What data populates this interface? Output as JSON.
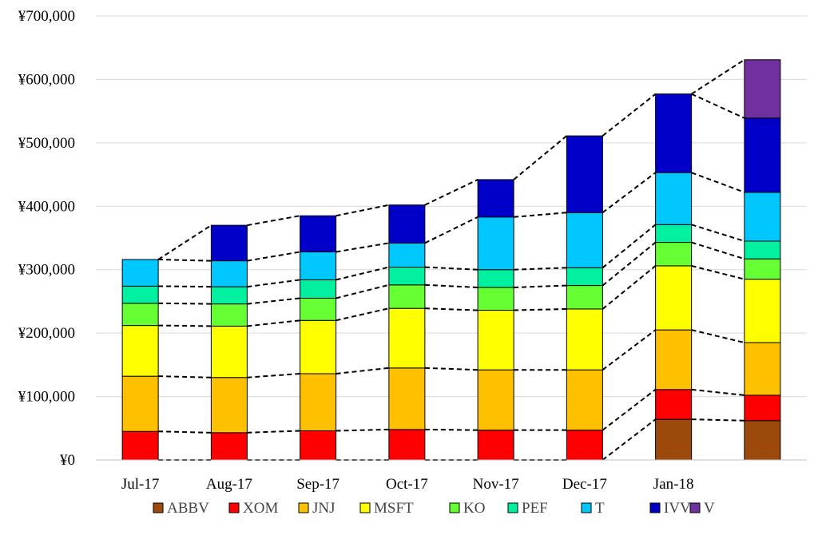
{
  "chart_data": {
    "type": "bar",
    "stacked": true,
    "categories": [
      "Jul-17",
      "Aug-17",
      "Sep-17",
      "Oct-17",
      "Nov-17",
      "Dec-17",
      "Jan-18",
      ""
    ],
    "y_tick_labels": [
      "¥0",
      "¥100,000",
      "¥200,000",
      "¥300,000",
      "¥400,000",
      "¥500,000",
      "¥600,000",
      "¥700,000"
    ],
    "ylim": [
      0,
      700000
    ],
    "grid": true,
    "legend_position": "bottom",
    "connector_lines": "dashed",
    "series": [
      {
        "name": "ABBV",
        "color": "#9C4A0C",
        "values": [
          0,
          0,
          0,
          0,
          0,
          0,
          64000,
          62000
        ]
      },
      {
        "name": "XOM",
        "color": "#FF0000",
        "values": [
          45000,
          43000,
          46000,
          48000,
          47000,
          47000,
          47000,
          40000
        ]
      },
      {
        "name": "JNJ",
        "color": "#FFC000",
        "values": [
          87000,
          87000,
          90000,
          97000,
          95000,
          95000,
          94000,
          83000
        ]
      },
      {
        "name": "MSFT",
        "color": "#FFFF00",
        "values": [
          80000,
          81000,
          84000,
          94000,
          94000,
          96000,
          101000,
          100000
        ]
      },
      {
        "name": "KO",
        "color": "#66FF33",
        "values": [
          35000,
          35000,
          35000,
          37000,
          36000,
          37000,
          37000,
          32000
        ]
      },
      {
        "name": "PEF",
        "color": "#00F0A0",
        "values": [
          27000,
          27000,
          29000,
          28000,
          28000,
          28000,
          28000,
          28000
        ]
      },
      {
        "name": "T",
        "color": "#00C8FF",
        "values": [
          42000,
          41000,
          44000,
          38000,
          83000,
          87000,
          82000,
          77000
        ]
      },
      {
        "name": "IVV",
        "color": "#0000C8",
        "values": [
          0,
          56000,
          57000,
          60000,
          59000,
          121000,
          124000,
          117000
        ]
      },
      {
        "name": "V",
        "color": "#7030A0",
        "values": [
          0,
          0,
          0,
          0,
          0,
          0,
          0,
          92000
        ]
      }
    ]
  }
}
